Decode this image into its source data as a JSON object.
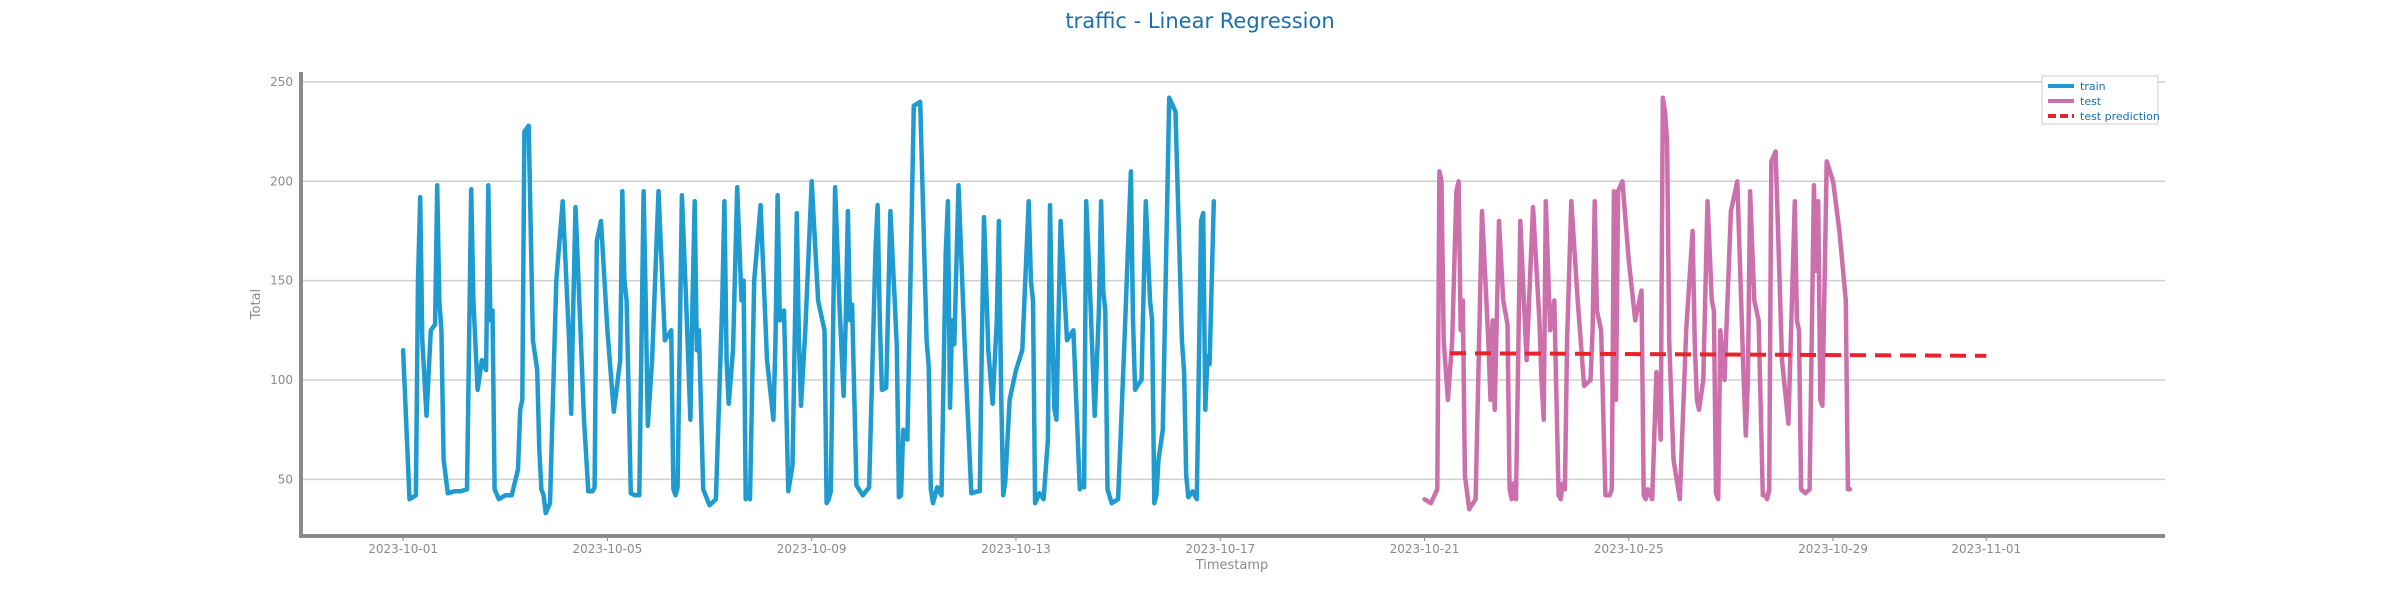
{
  "chart_data": {
    "type": "line",
    "title": "traffic - Linear Regression",
    "xlabel": "Timestamp",
    "ylabel": "Total",
    "xlim": [
      "2023-09-29T00:00",
      "2023-11-04T12:00"
    ],
    "ylim": [
      22,
      255
    ],
    "grid": "horizontal",
    "legend_position": "top-right",
    "x_ticks": [
      "2023-10-01",
      "2023-10-05",
      "2023-10-09",
      "2023-10-13",
      "2023-10-17",
      "2023-10-21",
      "2023-10-25",
      "2023-10-29",
      "2023-11-01"
    ],
    "y_ticks": [
      50,
      100,
      150,
      200,
      250
    ],
    "daily_profile_hours": [
      0,
      3,
      6,
      7,
      8,
      9,
      11,
      13,
      15,
      16,
      17,
      18,
      19,
      21
    ],
    "series": [
      {
        "name": "train",
        "color": "#1f9bd0",
        "start_date": "2023-10-01",
        "days": [
          [
            115,
            40,
            42,
            150,
            192,
            120,
            82,
            125,
            128,
            198,
            140,
            125,
            60,
            43
          ],
          [
            44,
            44,
            45,
            120,
            196,
            140,
            95,
            110,
            105,
            198,
            130,
            135,
            45,
            40
          ],
          [
            42,
            42,
            55,
            85,
            90,
            225,
            228,
            120,
            105,
            65,
            45,
            42,
            33,
            38
          ],
          [
            150,
            190,
            120,
            83,
            140,
            187,
            135,
            80,
            44,
            44,
            44,
            46,
            170,
            180
          ],
          [
            125,
            84,
            110,
            195,
            150,
            140,
            43,
            42,
            42,
            120,
            195,
            140,
            77,
            110
          ],
          [
            195,
            120,
            125,
            45,
            42,
            46,
            193,
            140,
            80,
            140,
            190,
            115,
            125,
            45
          ],
          [
            37,
            40,
            140,
            190,
            110,
            88,
            115,
            197,
            140,
            150,
            40,
            42,
            40,
            150
          ],
          [
            188,
            110,
            80,
            120,
            193,
            130,
            135,
            44,
            57,
            120,
            184,
            120,
            87,
            125
          ],
          [
            200,
            140,
            125,
            38,
            40,
            44,
            197,
            140,
            92,
            130,
            185,
            130,
            138,
            47
          ],
          [
            42,
            46,
            165,
            188,
            130,
            95,
            96,
            185,
            140,
            117,
            41,
            42,
            75,
            70
          ],
          [
            238,
            240,
            120,
            107,
            45,
            38,
            46,
            42,
            163,
            190,
            86,
            130,
            118,
            198
          ],
          [
            115,
            43,
            44,
            44,
            120,
            182,
            115,
            88,
            130,
            180,
            95,
            42,
            49,
            90
          ],
          [
            105,
            115,
            190,
            150,
            140,
            38,
            43,
            40,
            70,
            188,
            130,
            86,
            80,
            180
          ],
          [
            120,
            125,
            45,
            48,
            46,
            190,
            140,
            82,
            135,
            190,
            145,
            135,
            45,
            38
          ],
          [
            40,
            120,
            205,
            130,
            95,
            97,
            100,
            190,
            140,
            130,
            38,
            42,
            60,
            75
          ],
          [
            242,
            235,
            120,
            104,
            52,
            41,
            44,
            40,
            180,
            184,
            85,
            112,
            108,
            190
          ]
        ]
      },
      {
        "name": "test",
        "color": "#cc70ac",
        "start_date": "2023-10-21",
        "days": [
          [
            40,
            38,
            45,
            205,
            200,
            120,
            90,
            120,
            195,
            200,
            125,
            140,
            52,
            35
          ],
          [
            40,
            185,
            120,
            90,
            130,
            85,
            180,
            140,
            128,
            45,
            40,
            48,
            40,
            180
          ],
          [
            110,
            187,
            130,
            100,
            80,
            190,
            125,
            140,
            42,
            40,
            48,
            45,
            120,
            190
          ],
          [
            140,
            97,
            100,
            125,
            190,
            135,
            125,
            42,
            42,
            45,
            195,
            90,
            195,
            200
          ],
          [
            160,
            130,
            145,
            42,
            40,
            45,
            40,
            104,
            70,
            242,
            235,
            220,
            120,
            60
          ],
          [
            40,
            125,
            175,
            120,
            90,
            85,
            100,
            190,
            140,
            135,
            43,
            40,
            125,
            100
          ],
          [
            185,
            200,
            100,
            72,
            100,
            195,
            140,
            130,
            42,
            42,
            40,
            45,
            210,
            215
          ],
          [
            110,
            78,
            190,
            130,
            125,
            45,
            43,
            45,
            198,
            155,
            190,
            90,
            87,
            210
          ],
          [
            200,
            175,
            140,
            45,
            45
          ]
        ]
      },
      {
        "name": "test prediction",
        "color": "#e8242a",
        "dashed": true,
        "x": [
          "2023-10-21T12:00",
          "2023-11-01T00:00"
        ],
        "y": [
          113.5,
          112.2
        ]
      }
    ]
  }
}
